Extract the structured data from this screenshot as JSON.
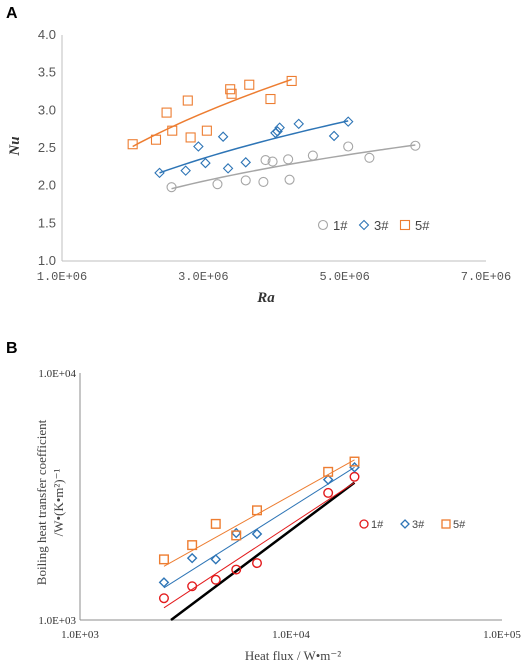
{
  "chart_data": [
    {
      "panel_label": "A",
      "type": "scatter",
      "xlabel": "Ra",
      "ylabel": "Nu",
      "xlim": [
        1000000,
        7000000
      ],
      "ylim": [
        1.0,
        4.0
      ],
      "xtick_values": [
        1000000,
        3000000,
        5000000,
        7000000
      ],
      "xtick_labels": [
        "1.0E+06",
        "3.0E+06",
        "5.0E+06",
        "7.0E+06"
      ],
      "ytick_values": [
        1.0,
        1.5,
        2.0,
        2.5,
        3.0,
        3.5,
        4.0
      ],
      "ytick_labels": [
        "1.0",
        "1.5",
        "2.0",
        "2.5",
        "3.0",
        "3.5",
        "4.0"
      ],
      "grid": false,
      "legend_position": "lower-right",
      "series": [
        {
          "name": "1#",
          "marker": "circle",
          "color": "#a6a6a6",
          "x": [
            2550000,
            3200000,
            3600000,
            3850000,
            3880000,
            3980000,
            4200000,
            4220000,
            4550000,
            5050000,
            5350000,
            6000000
          ],
          "y": [
            1.98,
            2.02,
            2.07,
            2.05,
            2.34,
            2.32,
            2.35,
            2.08,
            2.4,
            2.52,
            2.37,
            2.53
          ],
          "trend": {
            "x_start": 2550000,
            "x_end": 6000000,
            "y_start": 1.96,
            "y_end": 2.54
          }
        },
        {
          "name": "3#",
          "marker": "diamond",
          "color": "#2e75b6",
          "x": [
            2380000,
            2750000,
            2930000,
            3030000,
            3280000,
            3350000,
            3600000,
            4020000,
            4050000,
            4080000,
            4350000,
            4850000,
            5050000
          ],
          "y": [
            2.17,
            2.2,
            2.52,
            2.3,
            2.65,
            2.23,
            2.31,
            2.7,
            2.72,
            2.77,
            2.82,
            2.66,
            2.85
          ],
          "trend": {
            "x_start": 2380000,
            "x_end": 5050000,
            "y_start": 2.17,
            "y_end": 2.86
          }
        },
        {
          "name": "5#",
          "marker": "square",
          "color": "#ed7d31",
          "x": [
            2000000,
            2330000,
            2480000,
            2560000,
            2780000,
            2820000,
            3050000,
            3380000,
            3400000,
            3650000,
            3950000,
            4250000
          ],
          "y": [
            2.55,
            2.61,
            2.97,
            2.73,
            3.13,
            2.64,
            2.73,
            3.28,
            3.22,
            3.34,
            3.15,
            3.39
          ],
          "trend": {
            "x_start": 2000000,
            "x_end": 4250000,
            "y_start": 2.52,
            "y_end": 3.41
          }
        }
      ]
    },
    {
      "panel_label": "B",
      "type": "scatter",
      "xlabel": "Heat flux / W•m⁻²",
      "ylabel_line1": "Boiling heat transfer coefficient",
      "ylabel_line2": "/W•(K•m²)⁻¹",
      "x_scale": "log",
      "y_scale": "log",
      "xlim": [
        1000,
        100000
      ],
      "ylim": [
        1000,
        10000
      ],
      "xtick_values": [
        1000,
        10000,
        100000
      ],
      "xtick_labels": [
        "1.0E+03",
        "1.0E+04",
        "1.0E+05"
      ],
      "ytick_values": [
        1000,
        10000
      ],
      "ytick_labels": [
        "1.0E+03",
        "1.0E+04"
      ],
      "grid": false,
      "legend_position": "right",
      "series": [
        {
          "name": "1#",
          "marker": "circle",
          "color": "#e31a1c",
          "x": [
            2500,
            3400,
            4400,
            5500,
            6900,
            15000,
            20000
          ],
          "y": [
            1225,
            1370,
            1455,
            1600,
            1700,
            3270,
            3800
          ],
          "trend": {
            "x_start": 2500,
            "x_end": 20000,
            "y_start": 1120,
            "y_end": 3600
          }
        },
        {
          "name": "3#",
          "marker": "diamond",
          "color": "#2e75b6",
          "x": [
            2500,
            3400,
            4400,
            5500,
            6900,
            15000,
            20000
          ],
          "y": [
            1420,
            1780,
            1760,
            2250,
            2230,
            3700,
            4150
          ],
          "trend": {
            "x_start": 2500,
            "x_end": 20000,
            "y_start": 1350,
            "y_end": 4150
          }
        },
        {
          "name": "5#",
          "marker": "square",
          "color": "#ed7d31",
          "x": [
            2500,
            3400,
            4400,
            5500,
            6900,
            15000,
            20000
          ],
          "y": [
            1760,
            2010,
            2450,
            2200,
            2780,
            3980,
            4380
          ],
          "trend": {
            "x_start": 2500,
            "x_end": 20000,
            "y_start": 1650,
            "y_end": 4450
          }
        }
      ],
      "reference_line": {
        "x_start": 2700,
        "x_end": 20000,
        "y_start": 1000,
        "y_end": 3600,
        "color": "#000000"
      }
    }
  ]
}
